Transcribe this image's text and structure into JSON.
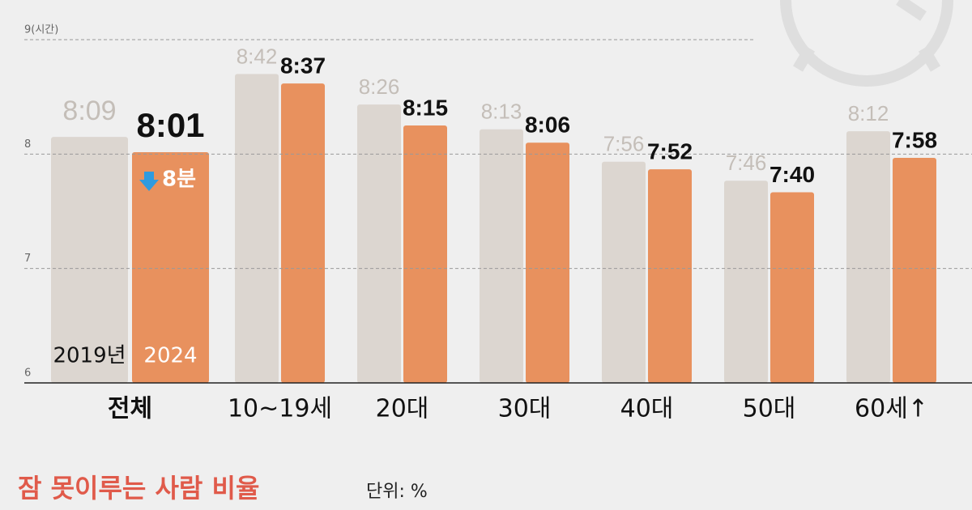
{
  "chart_data": {
    "type": "bar",
    "categories": [
      "전체",
      "10~19세",
      "20대",
      "30대",
      "40대",
      "50대",
      "60세↑"
    ],
    "series": [
      {
        "name": "2019년",
        "color": "#dcd6d0",
        "values": [
          8.15,
          8.7,
          8.4333,
          8.2167,
          7.9333,
          7.7667,
          8.2
        ],
        "value_labels": [
          "8:09",
          "8:42",
          "8:26",
          "8:13",
          "7:56",
          "7:46",
          "8:12"
        ]
      },
      {
        "name": "2024",
        "color": "#e8915e",
        "values": [
          8.0167,
          8.6167,
          8.25,
          8.1,
          7.8667,
          7.6667,
          7.9667
        ],
        "value_labels": [
          "8:01",
          "8:37",
          "8:15",
          "8:06",
          "7:52",
          "7:40",
          "7:58"
        ]
      }
    ],
    "ylim": [
      6,
      9
    ],
    "yticks": [
      6,
      7,
      8,
      {
        "value": 9,
        "label": "9(시간)"
      }
    ],
    "grid": true,
    "annotation": "8분",
    "footer_title": "잠 못이루는 사람 비율",
    "footer_unit": "단위: %"
  }
}
